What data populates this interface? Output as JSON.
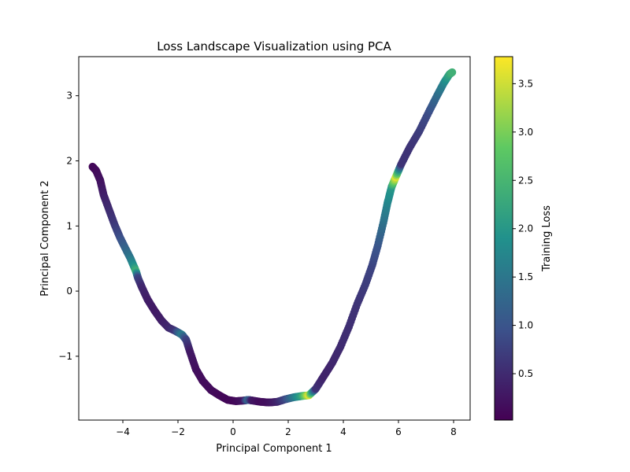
{
  "chart_data": {
    "type": "scatter",
    "title": "Loss Landscape Visualization using PCA",
    "xlabel": "Principal Component 1",
    "ylabel": "Principal Component 2",
    "xlim": [
      -5.6,
      8.6
    ],
    "ylim": [
      -1.98,
      3.6
    ],
    "xticks": [
      -4,
      -2,
      0,
      2,
      4,
      6,
      8
    ],
    "yticks": [
      -1,
      0,
      1,
      2,
      3
    ],
    "grid": false,
    "colormap": "viridis",
    "colorbar": {
      "label": "Training Loss",
      "range": [
        0.02,
        3.78
      ],
      "ticks": [
        0.5,
        1.0,
        1.5,
        2.0,
        2.5,
        3.0,
        3.5
      ]
    },
    "series": [
      {
        "points": [
          [
            -5.1,
            1.91,
            0.1
          ],
          [
            -4.97,
            1.85,
            0.12
          ],
          [
            -4.82,
            1.7,
            0.2
          ],
          [
            -4.7,
            1.48,
            0.35
          ],
          [
            -4.5,
            1.25,
            0.5
          ],
          [
            -4.3,
            1.02,
            0.65
          ],
          [
            -4.1,
            0.82,
            0.9
          ],
          [
            -3.9,
            0.65,
            1.2
          ],
          [
            -3.72,
            0.5,
            1.5
          ],
          [
            -3.6,
            0.38,
            1.9
          ],
          [
            -3.52,
            0.3,
            2.4
          ],
          [
            -3.45,
            0.2,
            0.8
          ],
          [
            -3.3,
            0.05,
            0.45
          ],
          [
            -3.1,
            -0.13,
            0.35
          ],
          [
            -2.85,
            -0.3,
            0.3
          ],
          [
            -2.6,
            -0.45,
            0.35
          ],
          [
            -2.35,
            -0.56,
            0.45
          ],
          [
            -2.1,
            -0.61,
            0.6
          ],
          [
            -1.85,
            -0.67,
            1.6
          ],
          [
            -1.7,
            -0.75,
            0.8
          ],
          [
            -1.55,
            -0.95,
            0.3
          ],
          [
            -1.35,
            -1.2,
            0.2
          ],
          [
            -1.1,
            -1.38,
            0.15
          ],
          [
            -0.8,
            -1.52,
            0.15
          ],
          [
            -0.5,
            -1.6,
            0.1
          ],
          [
            -0.2,
            -1.67,
            0.08
          ],
          [
            0.1,
            -1.69,
            0.1
          ],
          [
            0.4,
            -1.68,
            0.25
          ],
          [
            0.55,
            -1.67,
            1.3
          ],
          [
            0.7,
            -1.68,
            0.3
          ],
          [
            1.0,
            -1.7,
            0.15
          ],
          [
            1.3,
            -1.71,
            0.2
          ],
          [
            1.6,
            -1.7,
            0.4
          ],
          [
            1.9,
            -1.66,
            0.8
          ],
          [
            2.2,
            -1.63,
            1.5
          ],
          [
            2.5,
            -1.61,
            2.2
          ],
          [
            2.75,
            -1.6,
            3.6
          ],
          [
            3.0,
            -1.5,
            0.6
          ],
          [
            3.3,
            -1.3,
            0.4
          ],
          [
            3.6,
            -1.1,
            0.45
          ],
          [
            3.9,
            -0.85,
            0.5
          ],
          [
            4.2,
            -0.55,
            0.55
          ],
          [
            4.5,
            -0.2,
            0.6
          ],
          [
            4.8,
            0.1,
            0.7
          ],
          [
            5.05,
            0.4,
            0.8
          ],
          [
            5.25,
            0.7,
            1.0
          ],
          [
            5.45,
            1.05,
            1.4
          ],
          [
            5.6,
            1.35,
            1.7
          ],
          [
            5.75,
            1.6,
            2.0
          ],
          [
            5.9,
            1.75,
            3.6
          ],
          [
            6.1,
            1.95,
            0.6
          ],
          [
            6.4,
            2.2,
            0.6
          ],
          [
            6.75,
            2.45,
            0.7
          ],
          [
            7.1,
            2.75,
            0.9
          ],
          [
            7.4,
            3.0,
            1.3
          ],
          [
            7.65,
            3.2,
            1.7
          ],
          [
            7.85,
            3.33,
            2.2
          ],
          [
            7.95,
            3.36,
            2.4
          ]
        ]
      }
    ]
  }
}
